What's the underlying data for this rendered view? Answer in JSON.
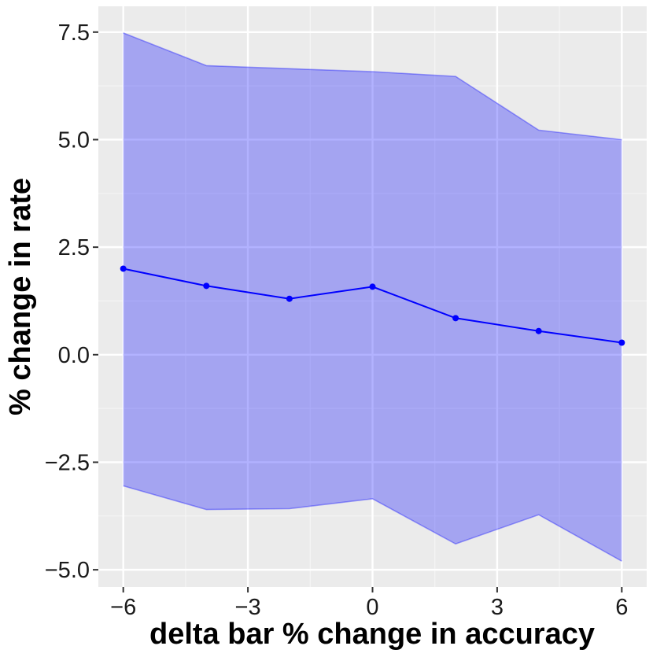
{
  "chart_data": {
    "type": "line",
    "xlabel": "delta bar % change in accuracy",
    "ylabel": "% change in rate",
    "xlim": [
      -6.6,
      6.6
    ],
    "ylim": [
      -5.4,
      8.1
    ],
    "x_ticks": [
      -6,
      -3,
      0,
      3,
      6
    ],
    "x_tick_labels": [
      "−6",
      "−3",
      "0",
      "3",
      "6"
    ],
    "y_ticks": [
      -5.0,
      -2.5,
      0.0,
      2.5,
      5.0,
      7.5
    ],
    "y_tick_labels": [
      "−5.0",
      "−2.5",
      "0.0",
      "2.5",
      "5.0",
      "7.5"
    ],
    "grid": true,
    "x": [
      -6,
      -4,
      -2,
      0,
      2,
      4,
      6
    ],
    "series": [
      {
        "values": [
          2.0,
          1.6,
          1.3,
          1.58,
          0.85,
          0.55,
          0.28
        ],
        "lower": [
          -3.05,
          -3.6,
          -3.58,
          -3.35,
          -4.4,
          -3.72,
          -4.8
        ],
        "upper": [
          7.48,
          6.72,
          6.65,
          6.58,
          6.47,
          5.22,
          5.0
        ]
      }
    ],
    "colors": {
      "panel": "#ebebeb",
      "grid_major": "#ffffff",
      "grid_minor": "#f5f5f5",
      "line": "#0000ff",
      "ribbon": "#0000ff",
      "tick": "#333333"
    }
  }
}
